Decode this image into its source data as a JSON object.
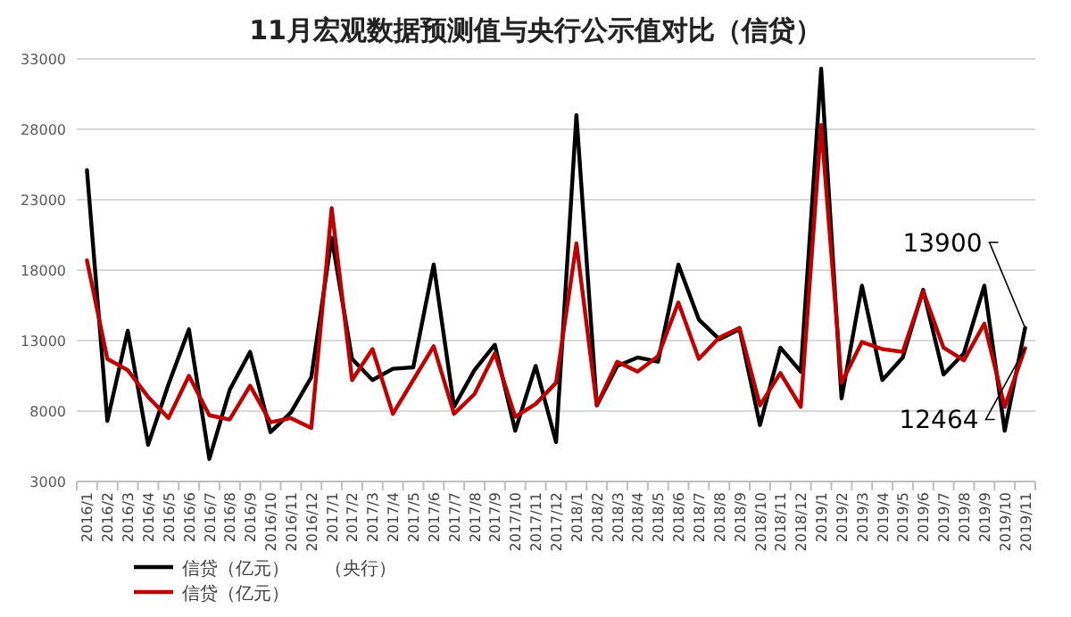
{
  "chart_data": {
    "type": "line",
    "title": "11月宏观数据预测值与央行公示值对比（信贷）",
    "categories": [
      "2016/1",
      "2016/2",
      "2016/3",
      "2016/4",
      "2016/5",
      "2016/6",
      "2016/7",
      "2016/8",
      "2016/9",
      "2016/10",
      "2016/11",
      "2016/12",
      "2017/1",
      "2017/2",
      "2017/3",
      "2017/4",
      "2017/5",
      "2017/6",
      "2017/7",
      "2017/8",
      "2017/9",
      "2017/10",
      "2017/11",
      "2017/12",
      "2018/1",
      "2018/2",
      "2018/3",
      "2018/4",
      "2018/5",
      "2018/6",
      "2018/7",
      "2018/8",
      "2018/9",
      "2018/10",
      "2018/11",
      "2018/12",
      "2019/1",
      "2019/2",
      "2019/3",
      "2019/4",
      "2019/5",
      "2019/6",
      "2019/7",
      "2019/8",
      "2019/9",
      "2019/10",
      "2019/11"
    ],
    "series": [
      {
        "name": "信贷（亿元）　　（央行）",
        "color": "#000000",
        "values": [
          25100,
          7300,
          13700,
          5600,
          9900,
          13800,
          4600,
          9500,
          12200,
          6500,
          7900,
          10400,
          20300,
          11700,
          10200,
          11000,
          11100,
          18400,
          8300,
          10900,
          12700,
          6600,
          11200,
          5800,
          29000,
          8400,
          11200,
          11800,
          11500,
          18400,
          14500,
          13100,
          13800,
          7000,
          12500,
          10800,
          32300,
          8900,
          16900,
          10200,
          11800,
          16600,
          10600,
          12100,
          16900,
          6600,
          13900
        ]
      },
      {
        "name": "信贷（亿元）",
        "color": "#c00000",
        "values": [
          18700,
          11700,
          10900,
          9000,
          7500,
          10500,
          7700,
          7400,
          9800,
          7200,
          7500,
          6800,
          22400,
          10200,
          12400,
          7800,
          10200,
          12600,
          7800,
          9200,
          12100,
          7600,
          8500,
          10000,
          19900,
          8400,
          11500,
          10800,
          11900,
          15700,
          11700,
          13200,
          13900,
          8400,
          10700,
          8300,
          28300,
          10000,
          12900,
          12400,
          12200,
          16500,
          12500,
          11600,
          14200,
          8300,
          12464
        ]
      }
    ],
    "ylim": [
      3000,
      33000
    ],
    "yticks": [
      3000,
      8000,
      13000,
      18000,
      23000,
      28000,
      33000
    ],
    "grid": "y",
    "legend": "bottom",
    "line_style": "solid",
    "marker": "none",
    "annotations": [
      {
        "text": "13900",
        "x": "2019/11",
        "y": 13900
      },
      {
        "text": "12464",
        "x": "2019/11",
        "y": 12464
      }
    ]
  }
}
